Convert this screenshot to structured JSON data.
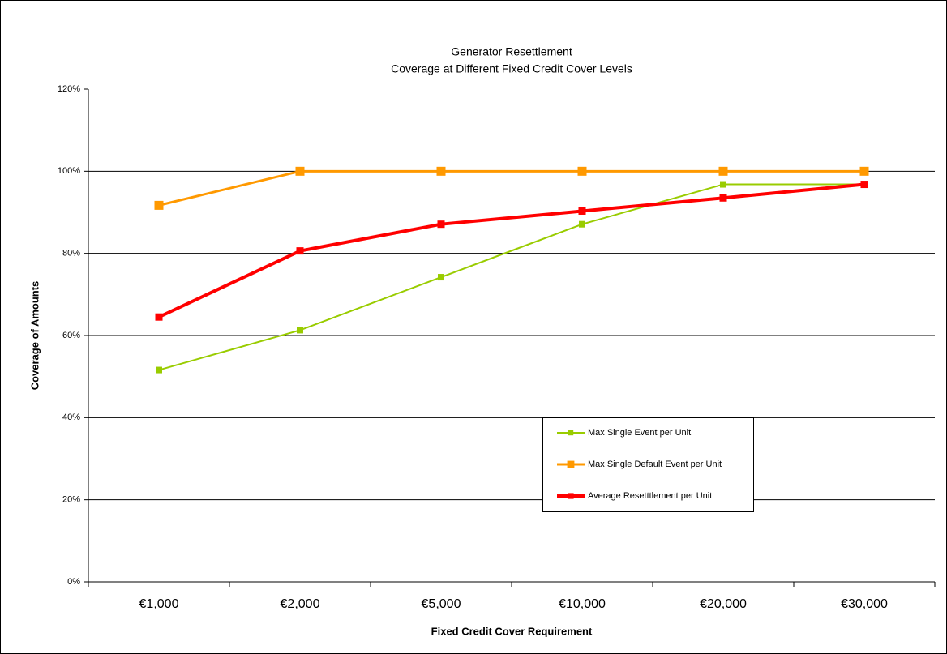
{
  "chart_data": {
    "type": "line",
    "title": "Generator Resettlement",
    "subtitle": "Coverage at Different Fixed Credit Cover Levels",
    "x_label": "Fixed Credit Cover Requirement",
    "y_label": "Coverage of Amounts",
    "categories": [
      "€1,000",
      "€2,000",
      "€5,000",
      "€10,000",
      "€20,000",
      "€30,000"
    ],
    "series": [
      {
        "name": "Max Single Event per Unit",
        "color": "#99cc00",
        "values": [
          51.6,
          61.3,
          74.2,
          87.1,
          96.8,
          96.8
        ]
      },
      {
        "name": "Max Single Default Event per Unit",
        "color": "#ff9900",
        "values": [
          91.7,
          100,
          100,
          100,
          100,
          100
        ]
      },
      {
        "name": "Average Resetttlement per Unit",
        "color": "#ff0000",
        "values": [
          64.5,
          80.6,
          87.1,
          90.3,
          93.5,
          96.8
        ]
      }
    ],
    "ylim": [
      0,
      120
    ],
    "yticks": [
      {
        "value": 0,
        "label": "0%"
      },
      {
        "value": 20,
        "label": "20%"
      },
      {
        "value": 40,
        "label": "40%"
      },
      {
        "value": 60,
        "label": "60%"
      },
      {
        "value": 80,
        "label": "80%"
      },
      {
        "value": 100,
        "label": "100%"
      },
      {
        "value": 120,
        "label": "120%"
      }
    ],
    "grid": true,
    "legend": "lower right"
  }
}
